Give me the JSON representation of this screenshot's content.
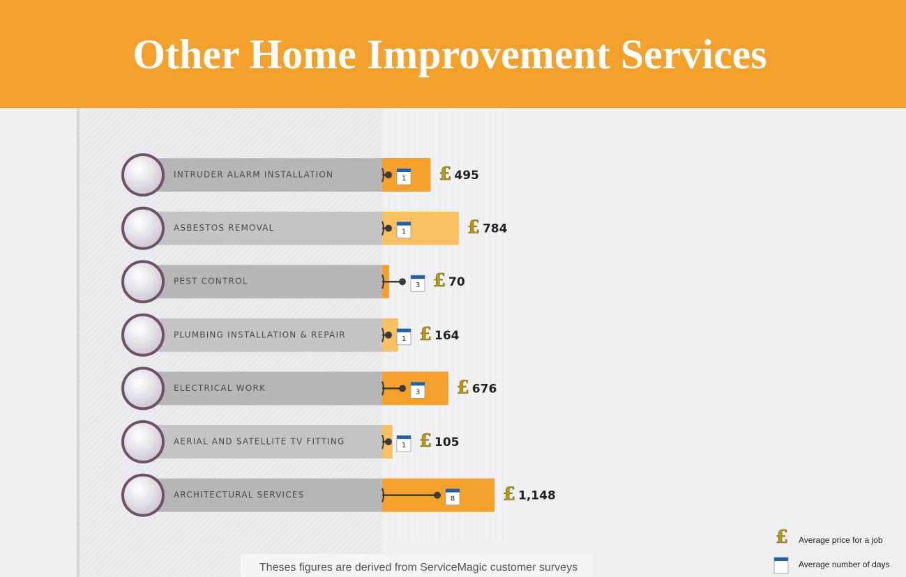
{
  "chart_data": {
    "type": "bar",
    "title": "Other Home Improvement Services",
    "categories": [
      "INTRUDER ALARM INSTALLATION",
      "ASBESTOS REMOVAL",
      "PEST CONTROL",
      "PLUMBING INSTALLATION & REPAIR",
      "ELECTRICAL WORK",
      "AERIAL AND SATELLITE TV FITTING",
      "ARCHITECTURAL SERVICES"
    ],
    "currency_symbol": "£",
    "series": [
      {
        "name": "Average price for a job",
        "colors": [
          "#f4a12c",
          "#f8c060",
          "#f4a12c",
          "#f8c060",
          "#f4a12c",
          "#f8c060",
          "#f4a12c"
        ],
        "values": [
          495,
          784,
          70,
          164,
          676,
          105,
          1148
        ],
        "value_labels": [
          "495",
          "784",
          "70",
          "164",
          "676",
          "105",
          "1,148"
        ]
      },
      {
        "name": "Average number of days",
        "color": "#1f5fb0",
        "values": [
          1,
          1,
          3,
          1,
          3,
          1,
          8
        ]
      }
    ],
    "note": "Theses figures are derived from ServiceMagic customer surveys"
  }
}
